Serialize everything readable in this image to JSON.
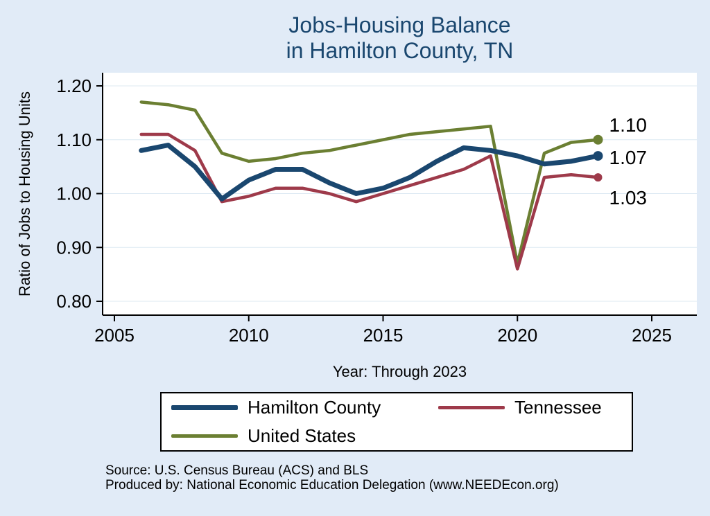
{
  "title": {
    "line1": "Jobs-Housing Balance",
    "line2": "in Hamilton County, TN"
  },
  "axes": {
    "y_label": "Ratio of Jobs to Housing Units",
    "x_label": "Year: Through 2023",
    "y_ticks": [
      "1.20",
      "1.10",
      "1.00",
      "0.90",
      "0.80"
    ],
    "x_ticks": [
      "2005",
      "2010",
      "2015",
      "2020",
      "2025"
    ]
  },
  "chart_data": {
    "type": "line",
    "title": "Jobs-Housing Balance in Hamilton County, TN",
    "xlabel": "Year: Through 2023",
    "ylabel": "Ratio of Jobs to Housing Units",
    "xlim": [
      2005,
      2025
    ],
    "ylim": [
      0.8,
      1.2
    ],
    "grid": false,
    "legend_position": "bottom",
    "x": [
      2006,
      2007,
      2008,
      2009,
      2010,
      2011,
      2012,
      2013,
      2014,
      2015,
      2016,
      2017,
      2018,
      2019,
      2020,
      2021,
      2022,
      2023
    ],
    "series": [
      {
        "name": "Hamilton County",
        "color": "#1a476f",
        "width": 7,
        "end_label": "1.07",
        "values": [
          1.08,
          1.09,
          1.05,
          0.99,
          1.025,
          1.045,
          1.045,
          1.02,
          1.0,
          1.01,
          1.03,
          1.06,
          1.085,
          1.08,
          1.07,
          1.055,
          1.06,
          1.07
        ]
      },
      {
        "name": "Tennessee",
        "color": "#9e3a4a",
        "width": 4.5,
        "end_label": "1.03",
        "values": [
          1.11,
          1.11,
          1.08,
          0.985,
          0.995,
          1.01,
          1.01,
          1.0,
          0.985,
          1.0,
          1.015,
          1.03,
          1.045,
          1.07,
          0.86,
          1.03,
          1.035,
          1.03
        ]
      },
      {
        "name": "United States",
        "color": "#6b7f32",
        "width": 4.5,
        "end_label": "1.10",
        "values": [
          1.17,
          1.165,
          1.155,
          1.075,
          1.06,
          1.065,
          1.075,
          1.08,
          1.09,
          1.1,
          1.11,
          1.115,
          1.12,
          1.125,
          0.87,
          1.075,
          1.095,
          1.1
        ]
      }
    ]
  },
  "footer": {
    "source_line": "Source: U.S. Census Bureau (ACS) and BLS",
    "produced_line": "Produced by: National Economic Education Delegation (www.NEEDEcon.org)"
  },
  "colors": {
    "background": "#e1ebf7",
    "plot_bg": "#ffffff",
    "grid": "#dce8f2",
    "title": "#1a476f",
    "axis": "#000000"
  }
}
